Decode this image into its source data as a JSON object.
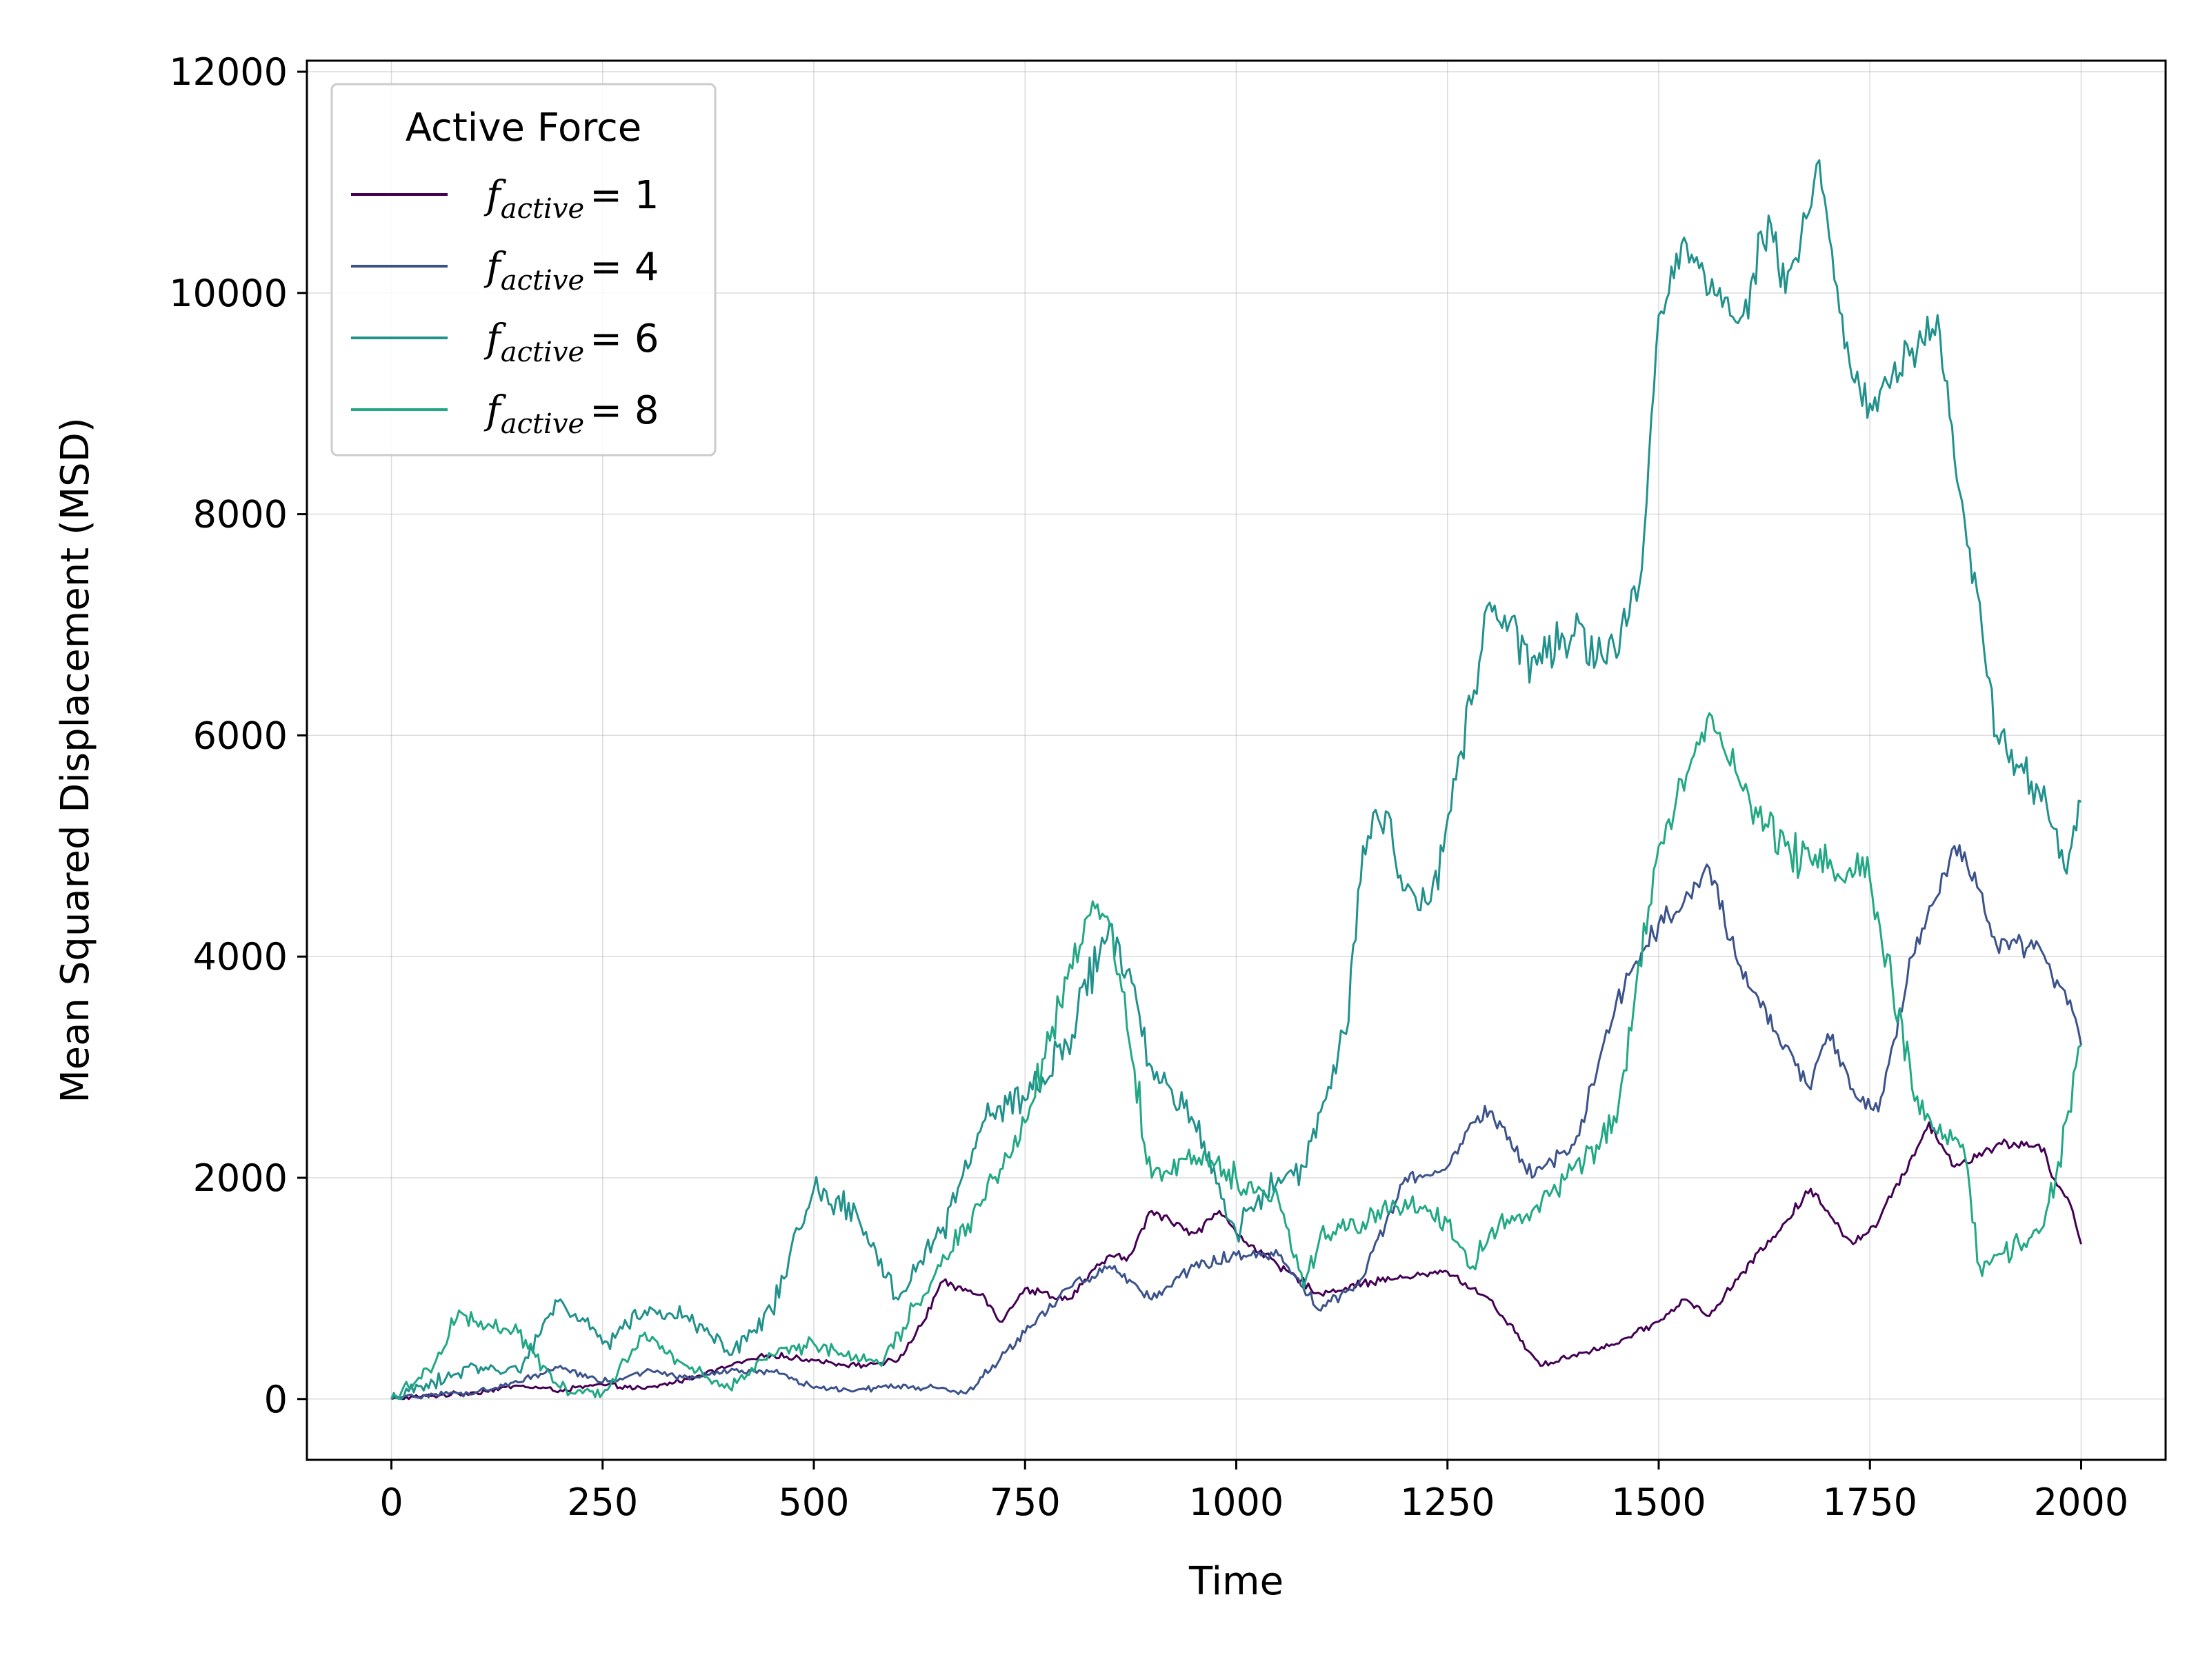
{
  "chart_data": {
    "type": "line",
    "title": "",
    "xlabel": "Time",
    "ylabel": "Mean Squared Displacement (MSD)",
    "xlim": [
      -100,
      2100
    ],
    "ylim": [
      -550,
      12100
    ],
    "xticks": [
      0,
      250,
      500,
      750,
      1000,
      1250,
      1500,
      1750,
      2000
    ],
    "yticks": [
      0,
      2000,
      4000,
      6000,
      8000,
      10000,
      12000
    ],
    "grid": true,
    "legend": {
      "title": "Active Force",
      "placement": "top-left"
    },
    "series": [
      {
        "name": "f_active = 1",
        "label_var": "f",
        "label_sub": "active",
        "label_eq": "= 1",
        "color": "#440154",
        "x": [
          0,
          50,
          100,
          150,
          200,
          250,
          300,
          350,
          400,
          450,
          500,
          550,
          600,
          630,
          650,
          700,
          720,
          750,
          800,
          850,
          870,
          900,
          950,
          980,
          1000,
          1050,
          1100,
          1150,
          1200,
          1250,
          1280,
          1300,
          1330,
          1360,
          1400,
          1450,
          1500,
          1530,
          1560,
          1600,
          1650,
          1680,
          1700,
          1730,
          1760,
          1800,
          1820,
          1850,
          1900,
          1950,
          1990,
          2000
        ],
        "y": [
          0,
          30,
          60,
          120,
          80,
          130,
          90,
          180,
          300,
          400,
          350,
          300,
          350,
          700,
          1050,
          950,
          700,
          1000,
          900,
          1300,
          1250,
          1700,
          1500,
          1700,
          1500,
          1200,
          950,
          1050,
          1100,
          1150,
          1000,
          900,
          600,
          300,
          400,
          500,
          700,
          900,
          750,
          1150,
          1600,
          1900,
          1700,
          1400,
          1600,
          2200,
          2500,
          2100,
          2300,
          2300,
          1700,
          1400
        ]
      },
      {
        "name": "f_active = 4",
        "label_var": "f",
        "label_sub": "active",
        "label_eq": "= 4",
        "color": "#3b528b",
        "x": [
          0,
          50,
          100,
          150,
          200,
          250,
          300,
          350,
          400,
          450,
          500,
          550,
          600,
          650,
          680,
          700,
          750,
          800,
          850,
          900,
          950,
          1000,
          1050,
          1100,
          1150,
          1200,
          1250,
          1280,
          1300,
          1350,
          1400,
          1450,
          1500,
          1530,
          1560,
          1600,
          1650,
          1680,
          1700,
          1730,
          1760,
          1800,
          1850,
          1880,
          1900,
          1950,
          1990,
          2000
        ],
        "y": [
          0,
          40,
          60,
          150,
          300,
          150,
          250,
          200,
          250,
          250,
          100,
          80,
          120,
          100,
          50,
          200,
          600,
          1000,
          1200,
          900,
          1200,
          1300,
          1300,
          800,
          1100,
          2000,
          2100,
          2500,
          2600,
          2000,
          2300,
          3600,
          4300,
          4500,
          4800,
          3800,
          3200,
          2800,
          3300,
          2800,
          2600,
          4000,
          5000,
          4600,
          4100,
          4100,
          3500,
          3200
        ]
      },
      {
        "name": "f_active = 6",
        "label_var": "f",
        "label_sub": "active",
        "label_eq": "= 6",
        "color": "#21918c",
        "x": [
          0,
          50,
          100,
          150,
          200,
          250,
          300,
          350,
          400,
          450,
          500,
          550,
          600,
          650,
          700,
          750,
          800,
          850,
          900,
          950,
          1000,
          1050,
          1080,
          1100,
          1130,
          1150,
          1180,
          1200,
          1230,
          1260,
          1300,
          1350,
          1400,
          1450,
          1480,
          1500,
          1530,
          1560,
          1600,
          1630,
          1650,
          1690,
          1720,
          1750,
          1800,
          1830,
          1850,
          1880,
          1900,
          1950,
          1980,
          2000
        ],
        "y": [
          0,
          150,
          300,
          250,
          900,
          500,
          800,
          750,
          400,
          800,
          1900,
          1700,
          900,
          1500,
          2500,
          2700,
          3200,
          4300,
          3000,
          2500,
          1500,
          2000,
          2100,
          2600,
          3300,
          5000,
          5300,
          4600,
          4500,
          5600,
          7200,
          6700,
          6900,
          6700,
          7500,
          9800,
          10500,
          10000,
          9800,
          10700,
          10000,
          11200,
          9500,
          9000,
          9500,
          9800,
          8500,
          7200,
          6000,
          5500,
          4800,
          5400
        ]
      },
      {
        "name": "f_active = 8",
        "label_var": "f",
        "label_sub": "active",
        "label_eq": "= 8",
        "color": "#22a884",
        "x": [
          0,
          50,
          80,
          100,
          150,
          200,
          250,
          300,
          350,
          400,
          450,
          500,
          550,
          580,
          600,
          650,
          700,
          750,
          800,
          830,
          850,
          900,
          950,
          1000,
          1050,
          1080,
          1100,
          1150,
          1200,
          1250,
          1280,
          1300,
          1350,
          1400,
          1450,
          1500,
          1530,
          1560,
          1600,
          1650,
          1700,
          1750,
          1800,
          1830,
          1860,
          1880,
          1900,
          1950,
          1970,
          2000
        ],
        "y": [
          0,
          300,
          800,
          700,
          600,
          100,
          50,
          600,
          300,
          100,
          400,
          500,
          400,
          300,
          600,
          1200,
          1800,
          2500,
          3800,
          4500,
          4300,
          2000,
          2200,
          2000,
          1800,
          1000,
          1500,
          1600,
          1800,
          1600,
          1200,
          1500,
          1700,
          2100,
          2500,
          5000,
          5500,
          6200,
          5500,
          5000,
          4800,
          4700,
          2800,
          2400,
          2300,
          1200,
          1300,
          1500,
          2000,
          3200
        ]
      }
    ]
  }
}
